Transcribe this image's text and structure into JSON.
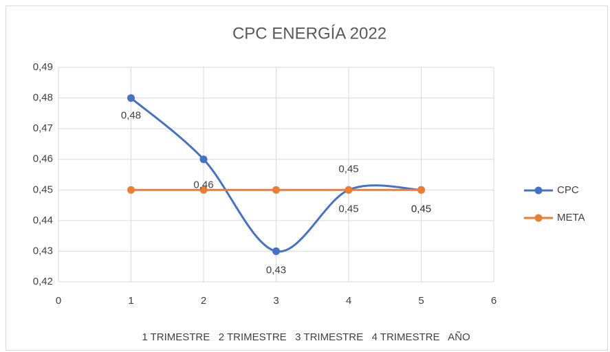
{
  "chart_data": {
    "type": "scatter-smooth",
    "title": "CPC ENERGÍA 2022",
    "x": [
      1,
      2,
      3,
      4,
      5
    ],
    "series": [
      {
        "name": "CPC",
        "color": "#4472c4",
        "values": [
          0.48,
          0.46,
          0.43,
          0.45,
          0.45
        ],
        "value_labels": [
          "0,48",
          "0,46",
          "0,43",
          "0,45",
          "0,45"
        ]
      },
      {
        "name": "META",
        "color": "#ed7d31",
        "values": [
          0.45,
          0.45,
          0.45,
          0.45,
          0.45
        ],
        "value_labels": [
          null,
          null,
          null,
          "0,45",
          "0,45"
        ]
      }
    ],
    "xlim": [
      0,
      6
    ],
    "xticks": [
      0,
      1,
      2,
      3,
      4,
      5,
      6
    ],
    "ylim": [
      0.42,
      0.49
    ],
    "yticks": [
      {
        "value": 0.42,
        "label": "0,42"
      },
      {
        "value": 0.43,
        "label": "0,43"
      },
      {
        "value": 0.44,
        "label": "0,44"
      },
      {
        "value": 0.45,
        "label": "0,45"
      },
      {
        "value": 0.46,
        "label": "0,46"
      },
      {
        "value": 0.47,
        "label": "0,47"
      },
      {
        "value": 0.48,
        "label": "0,48"
      },
      {
        "value": 0.49,
        "label": "0,49"
      }
    ],
    "x_label": "1 TRIMESTRE   2 TRIMESTRE   3 TRIMESTRE   4 TRIMESTRE   AÑO",
    "grid": true,
    "legend": "right"
  }
}
